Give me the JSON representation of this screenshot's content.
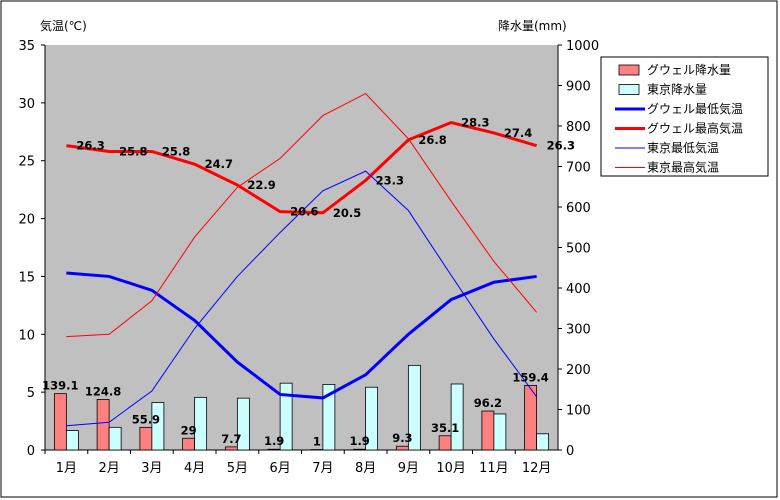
{
  "chart_data": {
    "type": "bar+line",
    "categories": [
      "1月",
      "2月",
      "3月",
      "4月",
      "5月",
      "6月",
      "7月",
      "8月",
      "9月",
      "10月",
      "11月",
      "12月"
    ],
    "left_axis": {
      "label": "気温(℃)",
      "ylim": [
        0,
        35
      ],
      "ticks": [
        0,
        5,
        10,
        15,
        20,
        25,
        30,
        35
      ]
    },
    "right_axis": {
      "label": "降水量(mm)",
      "ylim": [
        0,
        1000
      ],
      "ticks": [
        0,
        100,
        200,
        300,
        400,
        500,
        600,
        700,
        800,
        900,
        1000
      ]
    },
    "grid": false,
    "legend_placement": "right",
    "series": [
      {
        "name": "グウェル降水量",
        "kind": "bar",
        "axis": "right",
        "color": "#ff8080",
        "values": [
          139.1,
          124.8,
          55.9,
          29,
          7.7,
          1.9,
          1,
          1.9,
          9.3,
          35.1,
          96.2,
          159.4
        ],
        "labels": [
          "139.1",
          "124.8",
          "55.9",
          "29",
          "7.7",
          "1.9",
          "1",
          "1.9",
          "9.3",
          "35.1",
          "96.2",
          "159.4"
        ]
      },
      {
        "name": "東京降水量",
        "kind": "bar",
        "axis": "right",
        "color": "#ccffff",
        "values": [
          48,
          56,
          117,
          130,
          128,
          165,
          162,
          155,
          209,
          163,
          89,
          40
        ]
      },
      {
        "name": "グウェル最低気温",
        "kind": "line",
        "axis": "left",
        "color": "#0000ff",
        "width": 3,
        "values": [
          15.3,
          15.0,
          13.8,
          11.2,
          7.6,
          4.8,
          4.5,
          6.5,
          10.0,
          13.0,
          14.5,
          15.0
        ]
      },
      {
        "name": "グウェル最高気温",
        "kind": "line",
        "axis": "left",
        "color": "#ff0000",
        "width": 3,
        "values": [
          26.3,
          25.8,
          25.8,
          24.7,
          22.9,
          20.6,
          20.5,
          23.3,
          26.8,
          28.3,
          27.4,
          26.3
        ],
        "labels": [
          "26.3",
          "25.8",
          "25.8",
          "24.7",
          "22.9",
          "20.6",
          "20.5",
          "23.3",
          "26.8",
          "28.3",
          "27.4",
          "26.3"
        ]
      },
      {
        "name": "東京最低気温",
        "kind": "line",
        "axis": "left",
        "color": "#0000ff",
        "width": 1,
        "values": [
          2.1,
          2.4,
          5.1,
          10.5,
          15.0,
          18.8,
          22.4,
          24.1,
          20.7,
          15.1,
          9.6,
          4.6
        ]
      },
      {
        "name": "東京最高気温",
        "kind": "line",
        "axis": "left",
        "color": "#ff0000",
        "width": 1,
        "values": [
          9.8,
          10.0,
          12.9,
          18.4,
          22.7,
          25.2,
          28.9,
          30.8,
          26.9,
          21.5,
          16.3,
          11.9
        ]
      }
    ]
  }
}
